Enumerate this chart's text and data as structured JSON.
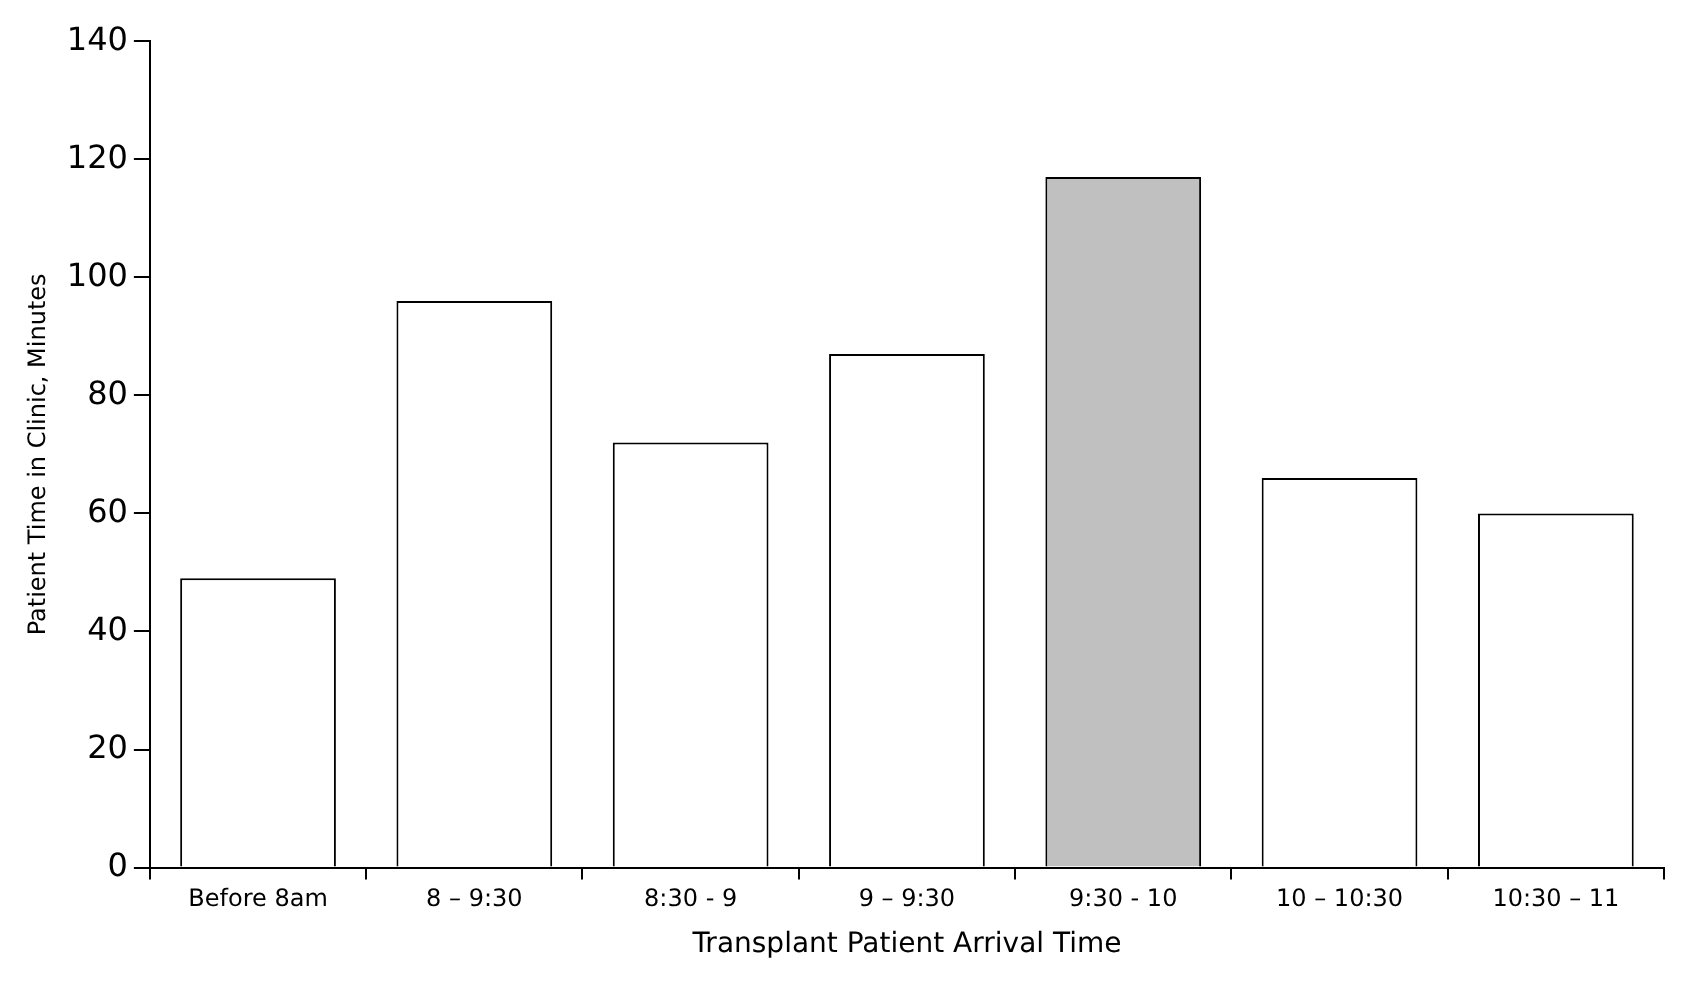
{
  "chart_data": {
    "type": "bar",
    "xlabel": "Transplant Patient Arrival Time",
    "ylabel": "Patient Time in Clinic, Minutes",
    "categories": [
      "Before 8am",
      "8 – 9:30",
      "8:30 - 9",
      "9 – 9:30",
      "9:30 - 10",
      "10 – 10:30",
      "10:30 – 11"
    ],
    "values": [
      49,
      96,
      72,
      87,
      117,
      66,
      60
    ],
    "colors": [
      "#ffffff",
      "#ffffff",
      "#ffffff",
      "#ffffff",
      "#c0c0c0",
      "#ffffff",
      "#ffffff"
    ],
    "ylim": [
      0,
      140
    ],
    "yticks": [
      0,
      20,
      40,
      60,
      80,
      100,
      120,
      140
    ],
    "grid": false,
    "legend": false
  }
}
